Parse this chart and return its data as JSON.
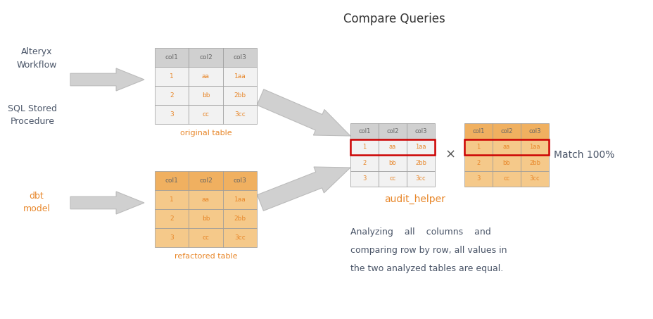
{
  "title": "Compare Queries",
  "title_color": "#333333",
  "title_fontsize": 12,
  "orange_color": "#E8872A",
  "dark_blue": "#4A5568",
  "gray_cell_bg": "#F2F2F2",
  "gray_header_bg": "#D0D0D0",
  "orange_table_bg": "#F5C98A",
  "orange_header_bg": "#F0B060",
  "red_border": "#CC0000",
  "arrow_color": "#D0D0D0",
  "arrow_edge": "#BBBBBB",
  "orig_label": "original table",
  "refact_label": "refactored table",
  "audit_label": "audit_helper",
  "match_label": "Match 100%",
  "cols": [
    "col1",
    "col2",
    "col3"
  ],
  "rows": [
    [
      "1",
      "aa",
      "1aa"
    ],
    [
      "2",
      "bb",
      "2bb"
    ],
    [
      "3",
      "cc",
      "3cc"
    ]
  ],
  "body_text_line1": "Analyzing    all    columns    and",
  "body_text_line2": "comparing row by row, all values in",
  "body_text_line3": "the two analyzed tables are equal."
}
